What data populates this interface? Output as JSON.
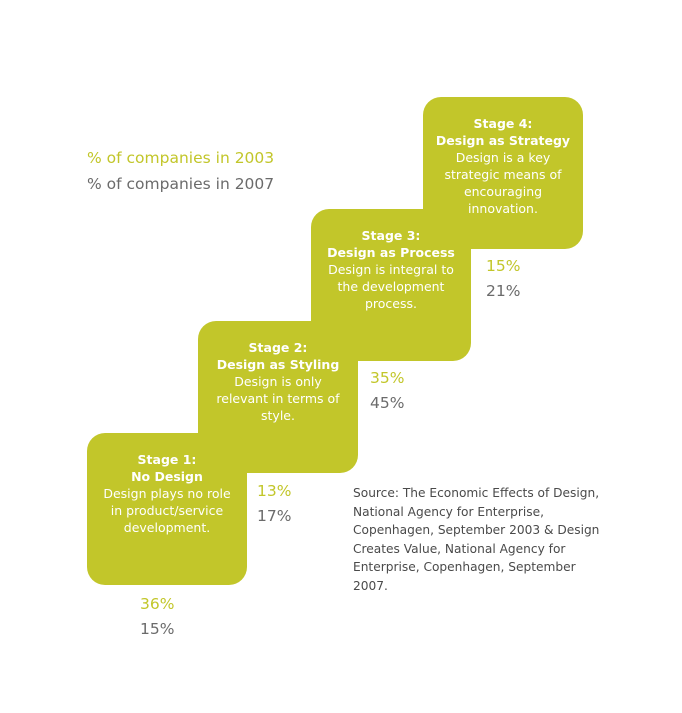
{
  "legend": {
    "label_2003": "% of companies in 2003",
    "label_2007": "% of companies in 2007",
    "color_2003": "#c2c62a",
    "color_2007": "#6b6b6b"
  },
  "stages": [
    {
      "stage": "Stage 1:",
      "name": "No Design",
      "description": "Design plays no role in product/service development.",
      "pct_2003": "36%",
      "pct_2007": "15%"
    },
    {
      "stage": "Stage 2:",
      "name": "Design as Styling",
      "description": "Design is only relevant in terms of style.",
      "pct_2003": "13%",
      "pct_2007": "17%"
    },
    {
      "stage": "Stage 3:",
      "name": "Design as Process",
      "description": "Design is integral to the development process.",
      "pct_2003": "35%",
      "pct_2007": "45%"
    },
    {
      "stage": "Stage 4:",
      "name": "Design as Strategy",
      "description": "Design is a key strategic means of encouraging innovation.",
      "pct_2003": "15%",
      "pct_2007": "21%"
    }
  ],
  "source": "Source: The Economic Effects of Design, National Agency for Enterprise, Copenhagen, September 2003 & Design Creates Value, National Agency for Enterprise, Copenhagen, September 2007.",
  "box_color": "#c2c62a"
}
